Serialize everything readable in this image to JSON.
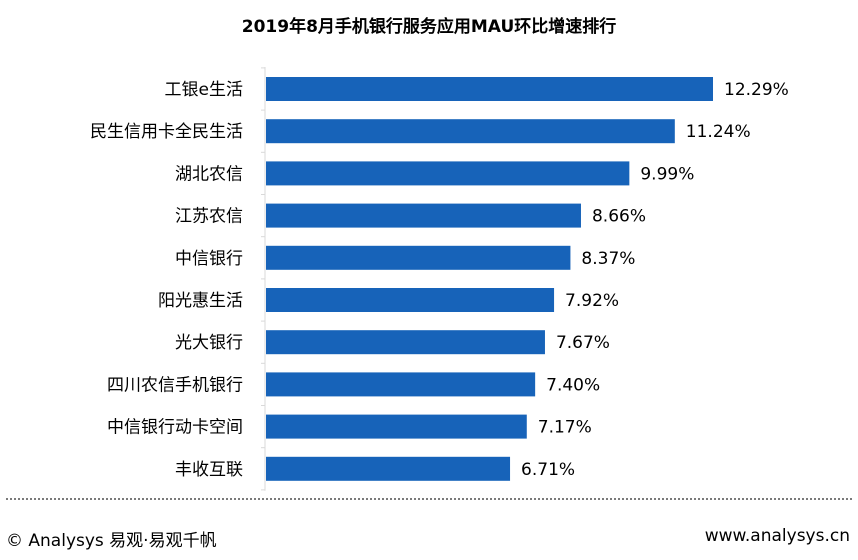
{
  "chart_data": {
    "type": "bar",
    "orientation": "horizontal",
    "title": "2019年8月手机银行服务应用MAU环比增速排行",
    "categories": [
      "工银e生活",
      "民生信用卡全民生活",
      "湖北农信",
      "江苏农信",
      "中信银行",
      "阳光惠生活",
      "光大银行",
      "四川农信手机银行",
      "中信银行动卡空间",
      "丰收互联"
    ],
    "values": [
      12.29,
      11.24,
      9.99,
      8.66,
      8.37,
      7.92,
      7.67,
      7.4,
      7.17,
      6.71
    ],
    "value_labels": [
      "12.29%",
      "11.24%",
      "9.99%",
      "8.66%",
      "8.37%",
      "7.92%",
      "7.67%",
      "7.40%",
      "7.17%",
      "6.71%"
    ],
    "xlabel": "",
    "ylabel": "",
    "xlim": [
      0,
      13.5
    ],
    "grid": false,
    "bar_color": "#1763b9"
  },
  "footer": {
    "copyright": "© Analysys 易观·易观千帆",
    "website": "www.analysys.cn"
  }
}
